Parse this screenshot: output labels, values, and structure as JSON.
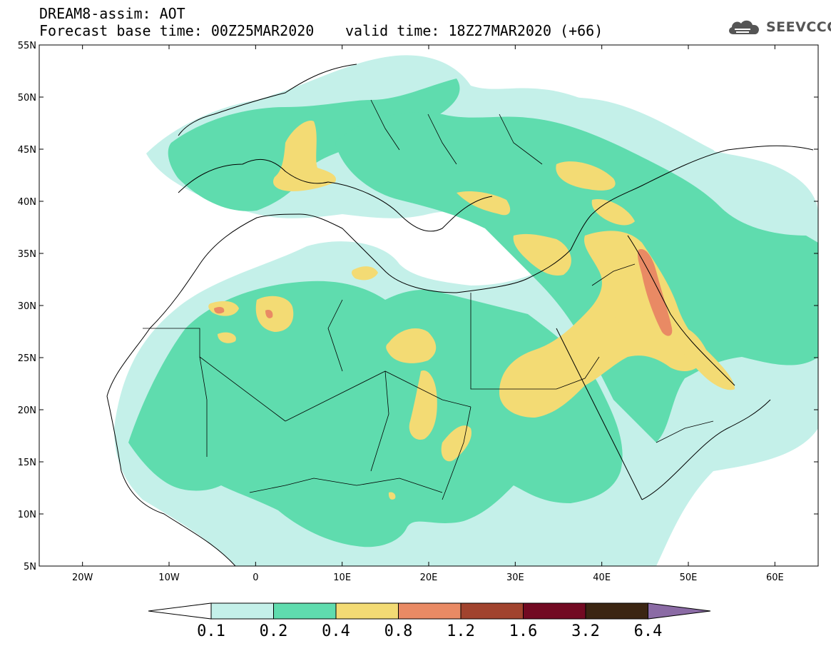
{
  "header": {
    "line1": "DREAM8-assim: AOT",
    "line2a": "Forecast base time: 00Z25MAR2020",
    "line2b": "valid time: 18Z27MAR2020 (+66)"
  },
  "logo": {
    "text": "SEEVCCC",
    "icon": "cloud-logo-icon"
  },
  "map": {
    "x_range_deg": [
      -25,
      65
    ],
    "y_range_deg": [
      5,
      55
    ],
    "lat_ticks": [
      {
        "value": 55,
        "label": "55N"
      },
      {
        "value": 50,
        "label": "50N"
      },
      {
        "value": 45,
        "label": "45N"
      },
      {
        "value": 40,
        "label": "40N"
      },
      {
        "value": 35,
        "label": "35N"
      },
      {
        "value": 30,
        "label": "30N"
      },
      {
        "value": 25,
        "label": "25N"
      },
      {
        "value": 20,
        "label": "20N"
      },
      {
        "value": 15,
        "label": "15N"
      },
      {
        "value": 10,
        "label": "10N"
      },
      {
        "value": 5,
        "label": "5N"
      }
    ],
    "lon_ticks": [
      {
        "value": -20,
        "label": "20W"
      },
      {
        "value": -10,
        "label": "10W"
      },
      {
        "value": 0,
        "label": "0"
      },
      {
        "value": 10,
        "label": "10E"
      },
      {
        "value": 20,
        "label": "20E"
      },
      {
        "value": 30,
        "label": "30E"
      },
      {
        "value": 40,
        "label": "40E"
      },
      {
        "value": 50,
        "label": "50E"
      },
      {
        "value": 60,
        "label": "60E"
      }
    ]
  },
  "colorbar": {
    "levels": [
      "0.1",
      "0.2",
      "0.4",
      "0.8",
      "1.2",
      "1.6",
      "3.2",
      "6.4"
    ],
    "colors": [
      "#c4f0e9",
      "#5fdcae",
      "#f3db74",
      "#e98a64",
      "#a1432e",
      "#720a22",
      "#3b2512",
      "#8b6ba5"
    ],
    "under_color": "#ffffff"
  }
}
